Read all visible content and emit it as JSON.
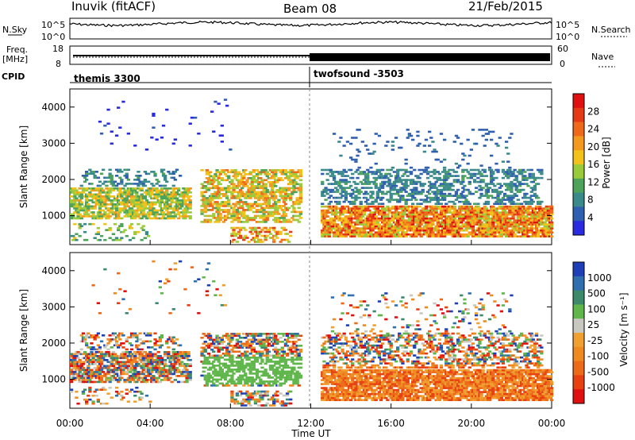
{
  "header": {
    "station": "Inuvik (fitACF)",
    "beam": "Beam 08",
    "date": "21/Feb/2015"
  },
  "left_labels": {
    "nsky": "N.Sky",
    "freq_line1": "Freq.",
    "freq_line2": "[MHz]",
    "cpid": "CPID"
  },
  "right_labels": {
    "nsearch": "N.Search",
    "nave": "Nave"
  },
  "cpid_segments": [
    "themis 3300",
    "twofsound -3503"
  ],
  "colors": {
    "power": [
      "#2a2ae0",
      "#2f5fb0",
      "#3a8a8a",
      "#4ea35a",
      "#9acb3a",
      "#f2c21a",
      "#f39a1e",
      "#ee6a1a",
      "#e53a14",
      "#e01010"
    ],
    "velocity": [
      "#1e3fb8",
      "#2f6fb0",
      "#3c8a6a",
      "#5fb64a",
      "#c8c8c0",
      "#f0a030",
      "#ef8a20",
      "#ec6a18",
      "#e84010",
      "#e01010"
    ]
  },
  "chart_data": [
    {
      "type": "line",
      "name": "nsky-nsearch",
      "ylabel": "N.Sky",
      "y_ticks": [
        "10^5",
        "10^0"
      ],
      "y2_ticks": [
        "10^5",
        "10^0"
      ],
      "y2label": "N.Search",
      "x_range_hours": [
        0,
        24
      ]
    },
    {
      "type": "line",
      "name": "freq-nave",
      "ylabel": "Freq. [MHz]",
      "y_ticks": [
        "18",
        "8"
      ],
      "y2_ticks": [
        "60",
        "0"
      ],
      "y2label": "Nave",
      "x_range_hours": [
        0,
        24
      ]
    },
    {
      "type": "heatmap",
      "name": "power",
      "ylabel": "Slant Range [km]",
      "y_ticks": [
        "1000",
        "2000",
        "3000",
        "4000"
      ],
      "ylim": [
        200,
        4500
      ],
      "colorbar_label": "Power [dB]",
      "colorbar_ticks": [
        "4",
        "8",
        "12",
        "16",
        "20",
        "24",
        "28"
      ]
    },
    {
      "type": "heatmap",
      "name": "velocity",
      "ylabel": "Slant Range [km]",
      "y_ticks": [
        "1000",
        "2000",
        "3000",
        "4000"
      ],
      "ylim": [
        200,
        4500
      ],
      "colorbar_label": "Velocity [m s⁻¹]",
      "colorbar_ticks": [
        "1000",
        "500",
        "100",
        "25",
        "-25",
        "-100",
        "-500",
        "-1000"
      ],
      "xlabel": "Time UT",
      "x_ticks": [
        "00:00",
        "04:00",
        "08:00",
        "12:00",
        "16:00",
        "20:00",
        "00:00"
      ]
    }
  ]
}
